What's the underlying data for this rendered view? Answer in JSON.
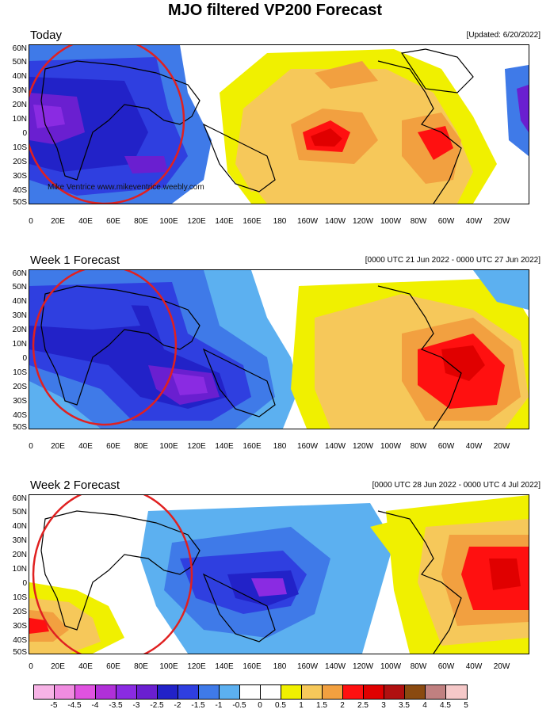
{
  "title": "MJO filtered VP200 Forecast",
  "credit": "Mike Ventrice www.mikeventrice.weebly.com",
  "latitude_labels": [
    "60N",
    "50N",
    "40N",
    "30N",
    "20N",
    "10N",
    "0",
    "10S",
    "20S",
    "30S",
    "40S",
    "50S"
  ],
  "longitude_labels": [
    "0",
    "20E",
    "40E",
    "60E",
    "80E",
    "100E",
    "120E",
    "140E",
    "160E",
    "180",
    "160W",
    "140W",
    "120W",
    "100W",
    "80W",
    "60W",
    "40W",
    "20W"
  ],
  "panels": [
    {
      "title": "Today",
      "date": "[Updated: 6/20/2022]"
    },
    {
      "title": "Week 1 Forecast",
      "date": "[0000 UTC 21 Jun 2022 - 0000 UTC 27 Jun 2022]"
    },
    {
      "title": "Week 2 Forecast",
      "date": "[0000 UTC 28 Jun 2022 - 0000 UTC 4 Jul 2022]"
    }
  ],
  "colorbar": {
    "labels": [
      "-5",
      "-4.5",
      "-4",
      "-3.5",
      "-3",
      "-2.5",
      "-2",
      "-1.5",
      "-1",
      "-0.5",
      "0",
      "0.5",
      "1",
      "1.5",
      "2",
      "2.5",
      "3",
      "3.5",
      "4",
      "4.5",
      "5"
    ],
    "colors": [
      "#f7b3e6",
      "#f08ce0",
      "#e052e0",
      "#b030d8",
      "#8a2be2",
      "#6a1fd0",
      "#2222c8",
      "#2f3fe0",
      "#3f7ae8",
      "#5cb0f0",
      "#ffffff",
      "#ffffff",
      "#f0f000",
      "#f6c85a",
      "#f2a040",
      "#ff1010",
      "#e00000",
      "#b01010",
      "#8a4a10",
      "#c08080",
      "#f5c8c8"
    ]
  },
  "colors": {
    "annotation_circle": "#e02020"
  }
}
